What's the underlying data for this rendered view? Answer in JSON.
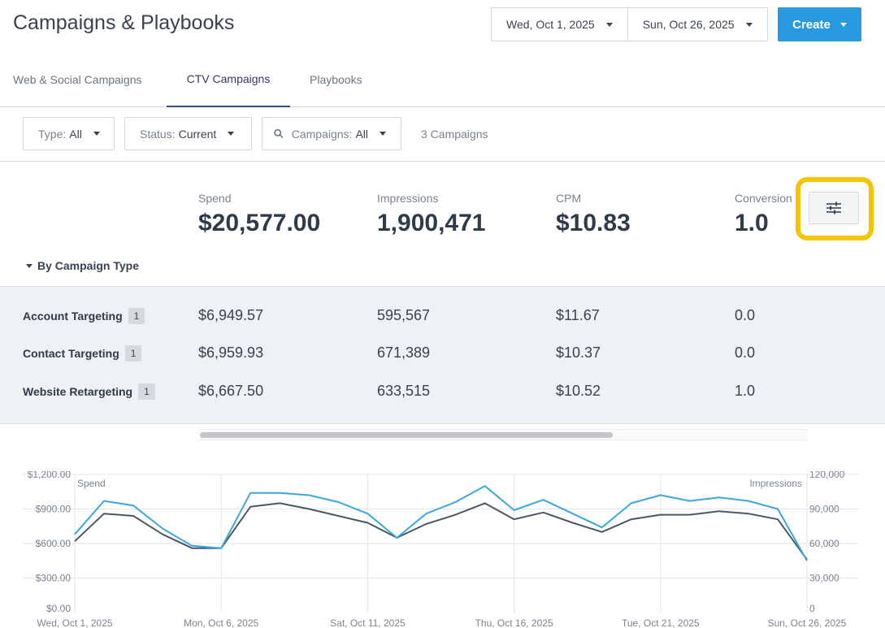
{
  "header": {
    "title": "Campaigns & Playbooks",
    "start_date": "Wed, Oct 1, 2025",
    "end_date": "Sun, Oct 26, 2025",
    "create_label": "Create"
  },
  "tabs": [
    {
      "label": "Web & Social Campaigns",
      "active": false
    },
    {
      "label": "CTV Campaigns",
      "active": true
    },
    {
      "label": "Playbooks",
      "active": false
    }
  ],
  "filters": {
    "type_label": "Type:",
    "type_value": "All",
    "status_label": "Status:",
    "status_value": "Current",
    "campaigns_label": "Campaigns:",
    "campaigns_value": "All",
    "count_text": "3 Campaigns"
  },
  "metrics": [
    {
      "label": "Spend",
      "value": "$20,577.00"
    },
    {
      "label": "Impressions",
      "value": "1,900,471"
    },
    {
      "label": "CPM",
      "value": "$10.83"
    },
    {
      "label": "Conversion",
      "value": "1.0"
    }
  ],
  "breakdown": {
    "toggle_label": "By Campaign Type",
    "rows": [
      {
        "name": "Account Targeting",
        "count": "1",
        "spend": "$6,949.57",
        "impressions": "595,567",
        "cpm": "$11.67",
        "conversions": "0.0"
      },
      {
        "name": "Contact Targeting",
        "count": "1",
        "spend": "$6,959.93",
        "impressions": "671,389",
        "cpm": "$10.37",
        "conversions": "0.0"
      },
      {
        "name": "Website Retargeting",
        "count": "1",
        "spend": "$6,667.50",
        "impressions": "633,515",
        "cpm": "$10.52",
        "conversions": "1.0"
      }
    ]
  },
  "colors": {
    "accent": "#2a9ae0",
    "highlight": "#f7c400",
    "spend_line": "#3aa7e0",
    "impressions_line": "#4a5866"
  },
  "chart_data": {
    "type": "line",
    "left_axis_label": "Spend",
    "right_axis_label": "Impressions",
    "left_ticks": [
      "$1,200.00",
      "$900.00",
      "$600.00",
      "$300.00",
      "$0.00"
    ],
    "right_ticks": [
      "120,000",
      "90,000",
      "60,000",
      "30,000",
      "0"
    ],
    "left_ylim": [
      0,
      1200
    ],
    "right_ylim": [
      0,
      120000
    ],
    "x_tick_labels": [
      "Wed, Oct 1, 2025",
      "Mon, Oct 6, 2025",
      "Sat, Oct 11, 2025",
      "Thu, Oct 16, 2025",
      "Tue, Oct 21, 2025",
      "Sun, Oct 26, 2025"
    ],
    "x": [
      "2025-10-01",
      "2025-10-02",
      "2025-10-03",
      "2025-10-04",
      "2025-10-05",
      "2025-10-06",
      "2025-10-07",
      "2025-10-08",
      "2025-10-09",
      "2025-10-10",
      "2025-10-11",
      "2025-10-12",
      "2025-10-13",
      "2025-10-14",
      "2025-10-15",
      "2025-10-16",
      "2025-10-17",
      "2025-10-18",
      "2025-10-19",
      "2025-10-20",
      "2025-10-21",
      "2025-10-22",
      "2025-10-23",
      "2025-10-24",
      "2025-10-25",
      "2025-10-26"
    ],
    "series": [
      {
        "name": "Spend",
        "axis": "left",
        "values": [
          680,
          970,
          930,
          730,
          580,
          560,
          1040,
          1040,
          1020,
          960,
          860,
          650,
          860,
          960,
          1100,
          890,
          980,
          860,
          740,
          950,
          1020,
          970,
          1000,
          970,
          900,
          450
        ]
      },
      {
        "name": "Impressions",
        "axis": "right",
        "values": [
          62000,
          86000,
          84000,
          68000,
          56000,
          56000,
          92000,
          95000,
          90000,
          84000,
          78000,
          65000,
          77000,
          85000,
          95000,
          81000,
          87000,
          78000,
          70000,
          81000,
          85000,
          85000,
          88000,
          86000,
          81000,
          46000
        ]
      }
    ]
  }
}
